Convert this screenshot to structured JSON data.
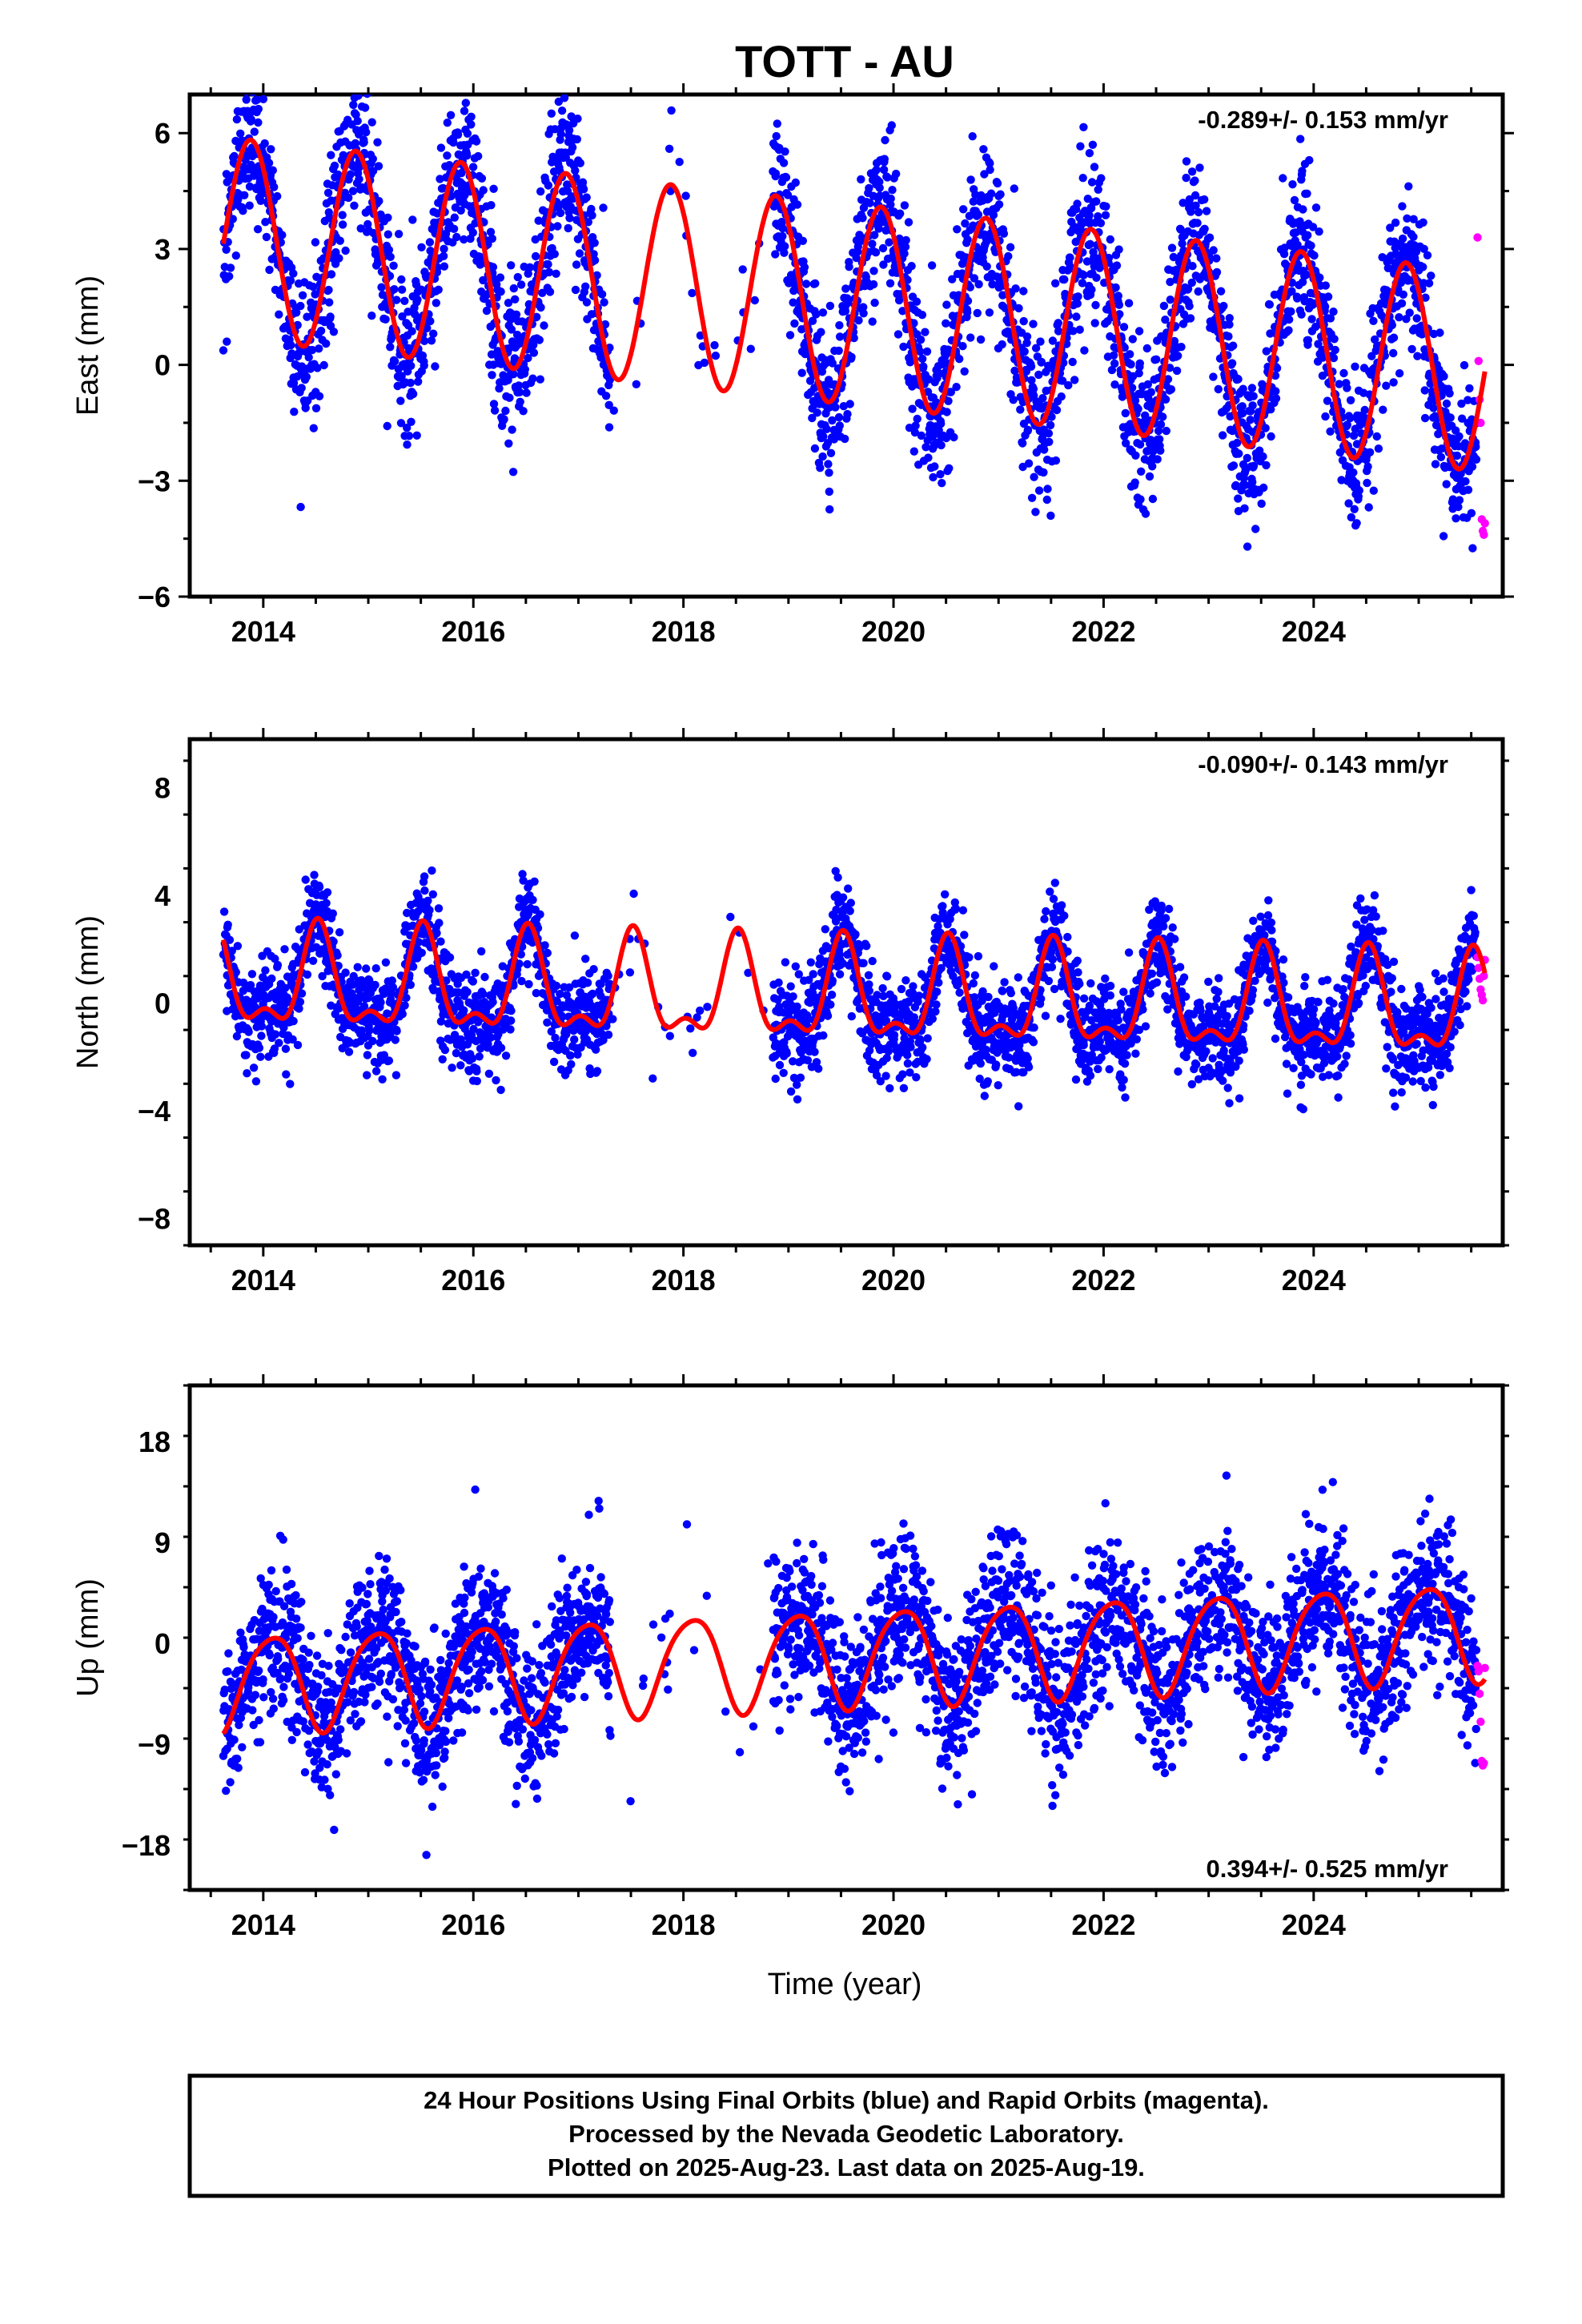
{
  "title": "TOTT - AU",
  "x_axis": {
    "label": "Time (year)",
    "ticks": [
      "2014",
      "2016",
      "2018",
      "2020",
      "2022",
      "2024"
    ],
    "tick_values": [
      2014,
      2016,
      2018,
      2020,
      2022,
      2024
    ],
    "xlim": [
      2013.3,
      2025.8
    ]
  },
  "caption": {
    "line1": "24 Hour Positions Using Final Orbits (blue) and Rapid Orbits (magenta).",
    "line2": "Processed by the Nevada Geodetic Laboratory.",
    "line3": "Plotted on 2025-Aug-23. Last data on 2025-Aug-19."
  },
  "colors": {
    "final": "#0000ff",
    "rapid": "#ff00ff",
    "model": "#ff0000",
    "axes": "#000000"
  },
  "chart_data": [
    {
      "type": "scatter",
      "component": "east",
      "ylabel": "East (mm)",
      "rate_text": "-0.289+/- 0.153 mm/yr",
      "rate_position": "top-right",
      "yticks": [
        "6",
        "3",
        "0",
        "−3",
        "−6"
      ],
      "ytick_values": [
        6,
        3,
        0,
        -3,
        -6
      ],
      "ylim": [
        -6,
        7
      ],
      "grid": false,
      "x_range": [
        2013.62,
        2025.63
      ],
      "model": {
        "offset": 1.6,
        "trend": -0.289,
        "annual_amp": 2.6,
        "annual_phase_peak": 0.88,
        "semi_amp": 0.0,
        "semi_phase_peak": 0.0
      },
      "scatter_sd": 1.0,
      "gap": [
        2017.3,
        2018.85
      ],
      "series": [
        {
          "name": "Final Orbits (blue)",
          "x_range": [
            2013.62,
            2025.55
          ]
        },
        {
          "name": "Rapid Orbits (magenta)",
          "x": [
            2025.56,
            2025.57,
            2025.58,
            2025.59,
            2025.6,
            2025.61,
            2025.62,
            2025.63
          ],
          "y": [
            3.3,
            0.1,
            -0.9,
            -1.5,
            -4.0,
            -4.3,
            -4.4,
            -4.1
          ]
        }
      ]
    },
    {
      "type": "scatter",
      "component": "north",
      "ylabel": "North (mm)",
      "rate_text": "-0.090+/- 0.143 mm/yr",
      "rate_position": "top-right",
      "yticks": [
        "8",
        "4",
        "0",
        "−4",
        "−8"
      ],
      "ytick_values": [
        8,
        4,
        0,
        -4,
        -8
      ],
      "ylim": [
        -9,
        9.8
      ],
      "grid": false,
      "x_range": [
        2013.62,
        2025.63
      ],
      "model": {
        "offset": 0.2,
        "trend": -0.09,
        "annual_amp": 1.7,
        "annual_phase_peak": 0.52,
        "semi_amp": 0.8,
        "semi_phase_peak": 0.02
      },
      "scatter_sd": 0.9,
      "gap": [
        2017.3,
        2018.85
      ],
      "series": [
        {
          "name": "Final Orbits (blue)",
          "x_range": [
            2013.62,
            2025.55
          ]
        },
        {
          "name": "Rapid Orbits (magenta)",
          "x": [
            2025.56,
            2025.57,
            2025.58,
            2025.59,
            2025.6,
            2025.61,
            2025.62,
            2025.63
          ],
          "y": [
            1.7,
            1.3,
            0.9,
            0.5,
            0.3,
            0.1,
            1.0,
            1.6
          ]
        }
      ]
    },
    {
      "type": "scatter",
      "component": "up",
      "ylabel": "Up (mm)",
      "rate_text": "0.394+/- 0.525 mm/yr",
      "rate_position": "bottom-right",
      "yticks": [
        "18",
        "9",
        "0",
        "−9",
        "−18"
      ],
      "ytick_values": [
        18,
        9,
        0,
        -9,
        -18
      ],
      "ylim": [
        -22,
        23
      ],
      "grid": false,
      "x_range": [
        2013.62,
        2025.63
      ],
      "model": {
        "offset": -1.2,
        "trend": 0.394,
        "annual_amp": 4.3,
        "annual_phase_peak": 0.08,
        "semi_amp": 0.6,
        "semi_phase_peak": 0.3
      },
      "scatter_sd": 3.4,
      "gap": [
        2017.3,
        2018.85
      ],
      "series": [
        {
          "name": "Final Orbits (blue)",
          "x_range": [
            2013.62,
            2025.55
          ]
        },
        {
          "name": "Rapid Orbits (magenta)",
          "x": [
            2025.56,
            2025.57,
            2025.58,
            2025.59,
            2025.6,
            2025.61,
            2025.62,
            2025.63
          ],
          "y": [
            -2.0,
            -2.5,
            -4.5,
            -7.0,
            -10.5,
            -10.9,
            -10.7,
            -2.2
          ]
        }
      ]
    }
  ]
}
